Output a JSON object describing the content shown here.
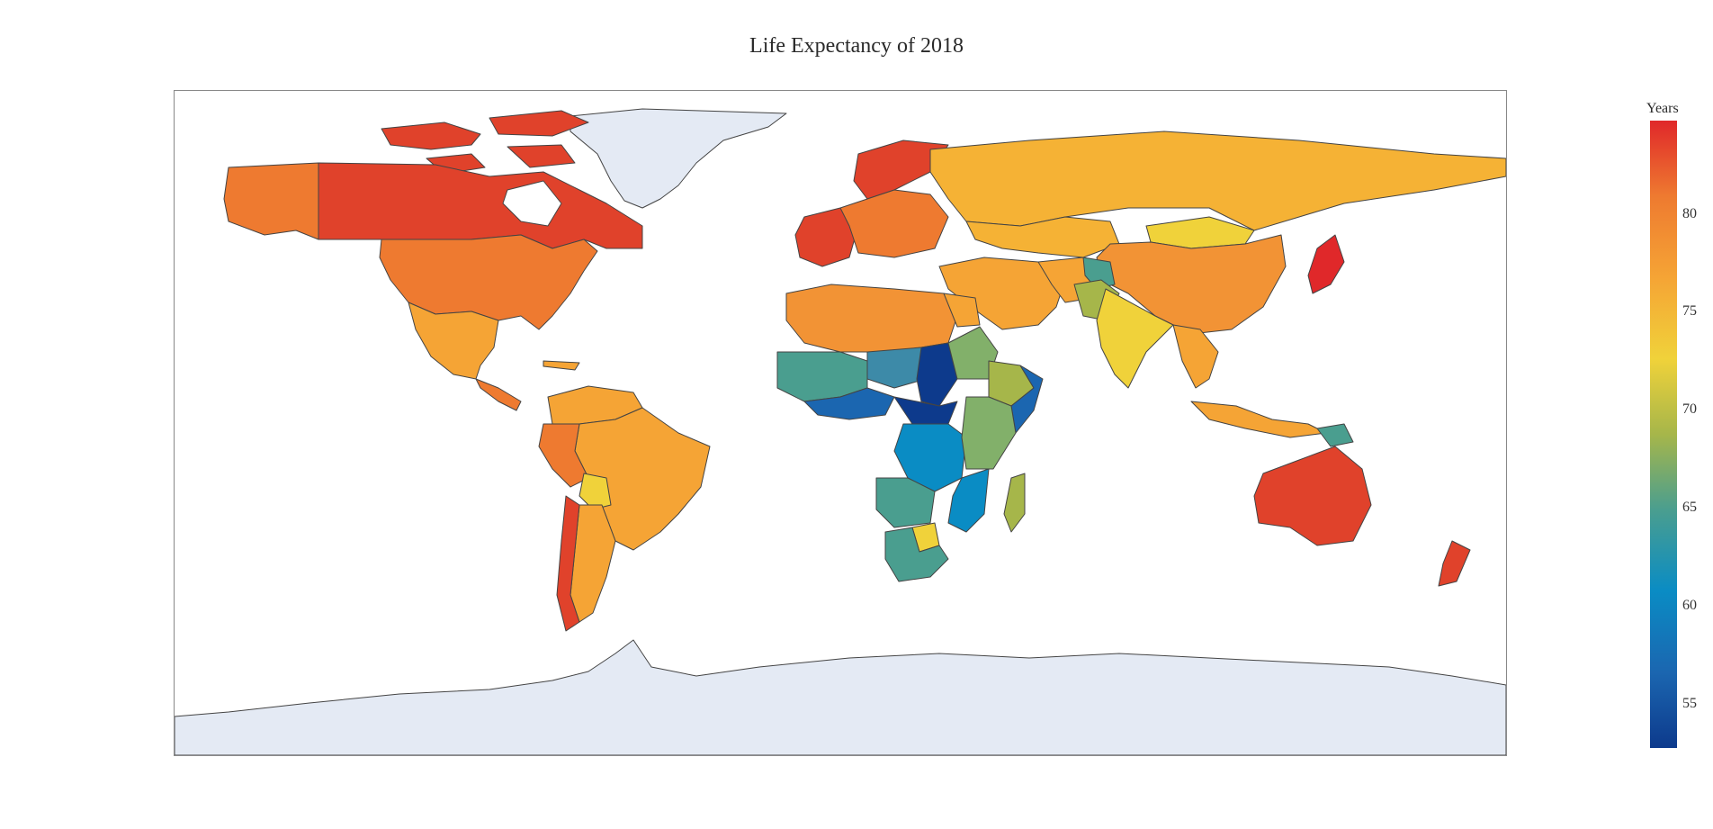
{
  "title": "Life Expectancy of 2018",
  "colorbar": {
    "title": "Years",
    "ticks": [
      "80",
      "75",
      "70",
      "65",
      "60",
      "55"
    ],
    "tick_values": [
      80,
      75,
      70,
      65,
      60,
      55
    ],
    "range": [
      52.8,
      84.8
    ],
    "colorscale": [
      "#0d3a8c",
      "#1b66b0",
      "#0a8cc4",
      "#4a9e8f",
      "#a6b64a",
      "#f0d23a",
      "#f5a435",
      "#ee7a30",
      "#e0282a"
    ]
  },
  "map": {
    "projection": "equirectangular",
    "no_data_color": "#e4eaf4",
    "border_color": "#444444"
  }
}
